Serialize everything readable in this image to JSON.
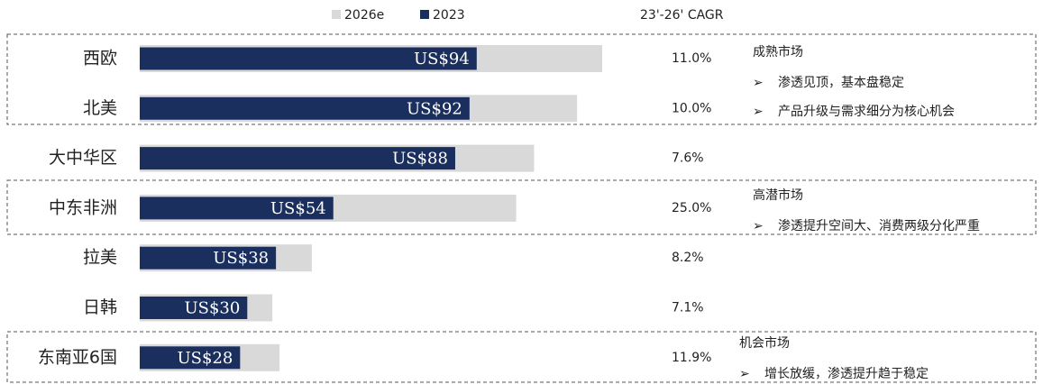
{
  "chart_data": {
    "type": "bar",
    "orientation": "horizontal",
    "categories": [
      "西欧",
      "北美",
      "大中华区",
      "中东非洲",
      "拉美",
      "日韩",
      "东南亚6国"
    ],
    "series": [
      {
        "name": "2026e",
        "color": "#d9d9d9",
        "values": [
          129,
          122,
          110,
          105,
          48,
          37,
          39
        ]
      },
      {
        "name": "2023",
        "color": "#1a2f5e",
        "values": [
          94,
          92,
          88,
          54,
          38,
          30,
          28
        ],
        "value_labels": [
          "US$94",
          "US$92",
          "US$88",
          "US$54",
          "US$38",
          "US$30",
          "US$28"
        ]
      }
    ],
    "cagr": {
      "title": "23'-26' CAGR",
      "labels": [
        "11.0%",
        "10.0%",
        "7.6%",
        "25.0%",
        "8.2%",
        "7.1%",
        "11.9%"
      ]
    },
    "annotations": [
      {
        "title": "成熟市场",
        "bullets": [
          "渗透见顶，基本盘稳定",
          "产品升级与需求细分为核心机会"
        ]
      },
      {
        "title": "高潜市场",
        "bullets": [
          "渗透提升空间大、消费两级分化严重"
        ]
      },
      {
        "title": "机会市场",
        "bullets": [
          "增长放缓，渗透提升趋于稳定"
        ]
      }
    ],
    "bullet_symbol": "➢"
  }
}
